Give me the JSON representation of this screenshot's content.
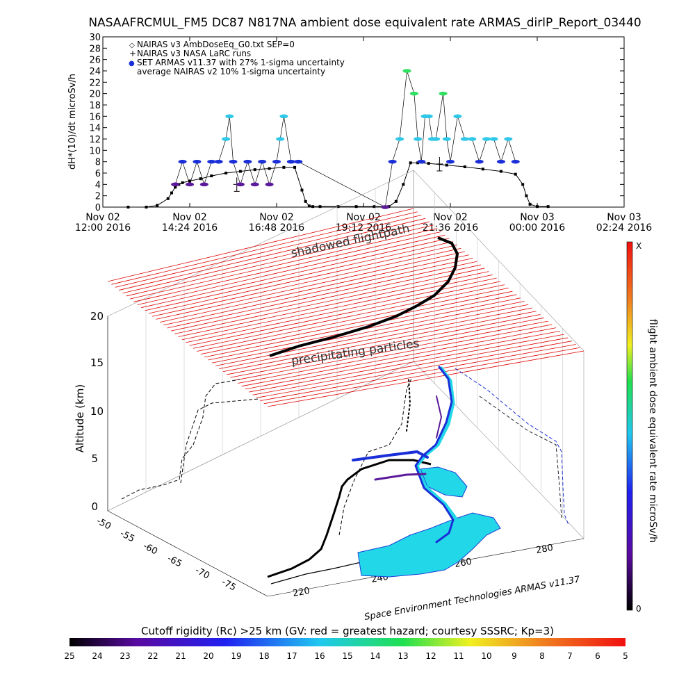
{
  "title": "NASAAFRCMUL_FM5 DC87 N817NA ambient dose equivalent rate ARMAS_dirlP_Report_03440",
  "chart_data": [
    {
      "type": "scatter",
      "ylabel": "dH*(10)/dt microSv/h",
      "ylim": [
        0,
        30
      ],
      "xlim": [
        0,
        14.4
      ],
      "y_ticks": [
        0,
        2,
        4,
        6,
        8,
        10,
        12,
        14,
        16,
        18,
        20,
        22,
        24,
        26,
        28,
        30
      ],
      "x_ticks": [
        {
          "x": 0,
          "line1": "Nov 02",
          "line2": "12:00 2016"
        },
        {
          "x": 2.4,
          "line1": "Nov 02",
          "line2": "14:24 2016"
        },
        {
          "x": 4.8,
          "line1": "Nov 02",
          "line2": "16:48 2016"
        },
        {
          "x": 7.2,
          "line1": "Nov 02",
          "line2": "19:12 2016"
        },
        {
          "x": 9.6,
          "line1": "Nov 02",
          "line2": "21:36 2016"
        },
        {
          "x": 12.0,
          "line1": "Nov 03",
          "line2": "00:00 2016"
        },
        {
          "x": 14.4,
          "line1": "Nov 03",
          "line2": "02:24 2016"
        }
      ],
      "legend": [
        {
          "symbol": "◇",
          "label": "NAIRAS v3 AmbDoseEq_G0.txt SEP=0"
        },
        {
          "symbol": "+",
          "label": "NAIRAS v3 NASA LaRC runs"
        },
        {
          "symbol": "●",
          "label": "SET ARMAS v11.37 with 27% 1-sigma uncertainty"
        },
        {
          "symbol": "",
          "label": "average NAIRAS v2 10% 1-sigma uncertainty"
        }
      ],
      "series": [
        {
          "name": "NAIRAS v3 AmbDoseEq_G0.txt SEP=0",
          "x": [
            0.7,
            1.2,
            1.5,
            1.8,
            1.9,
            2.0,
            2.1,
            2.2,
            2.4,
            2.7,
            3.0,
            3.4,
            3.8,
            4.2,
            4.6,
            5.0,
            5.3,
            5.5,
            5.6,
            5.7,
            5.8,
            6.0,
            6.5,
            7.0,
            7.5,
            7.9,
            8.1,
            8.3,
            8.5,
            8.7,
            9.0,
            9.5,
            10.0,
            10.5,
            11.0,
            11.4,
            11.6,
            11.7,
            11.8,
            12.0,
            12.3
          ],
          "y": [
            0,
            0,
            0.3,
            1.5,
            2.5,
            3.5,
            4.0,
            4.3,
            4.6,
            5.0,
            5.5,
            6.0,
            6.3,
            6.6,
            6.8,
            7.0,
            7.0,
            3.0,
            1.0,
            0.2,
            0.1,
            0.1,
            0.1,
            0.1,
            0.1,
            0.1,
            1.0,
            4.0,
            7.8,
            7.8,
            7.7,
            7.4,
            7.1,
            6.7,
            6.3,
            5.8,
            4.0,
            2.0,
            0.5,
            0.1,
            0.1
          ]
        },
        {
          "name": "NAIRAS v3 NASA LaRC runs",
          "x": [
            3.7,
            9.3
          ],
          "y": [
            4.0,
            7.6
          ]
        },
        {
          "name": "SET ARMAS v11.37 with 27% 1-sigma uncertainty",
          "x": [
            2.0,
            2.2,
            2.4,
            2.6,
            2.8,
            3.0,
            3.2,
            3.4,
            3.5,
            3.6,
            3.8,
            4.0,
            4.2,
            4.4,
            4.6,
            4.8,
            4.9,
            5.0,
            5.2,
            5.4,
            7.8,
            8.0,
            8.2,
            8.4,
            8.6,
            8.7,
            8.8,
            8.9,
            9.0,
            9.1,
            9.2,
            9.4,
            9.5,
            9.6,
            9.8,
            10.0,
            10.2,
            10.4,
            10.6,
            10.8,
            11.0,
            11.2,
            11.4
          ],
          "y": [
            4,
            8,
            4,
            8,
            4,
            8,
            8,
            12,
            16,
            8,
            4,
            8,
            4,
            8,
            4,
            8,
            12,
            16,
            8,
            8,
            0,
            8,
            12,
            24,
            20,
            12,
            8,
            16,
            16,
            12,
            12,
            20,
            12,
            8,
            16,
            12,
            12,
            8,
            12,
            12,
            8,
            12,
            8
          ]
        }
      ]
    },
    {
      "type": "scatter",
      "zlabel": "Altitude (km)",
      "zlim": [
        0,
        22
      ],
      "z_ticks": [
        "0",
        "5",
        "10",
        "15",
        "20"
      ],
      "lat_ticks": [
        "-50",
        "-55",
        "-60",
        "-65",
        "-70",
        "-75"
      ],
      "lon_ticks": [
        "220",
        "240",
        "260",
        "280"
      ],
      "annotations": [
        "shadowed flightpath",
        "precipitating particles"
      ],
      "colorbar": {
        "label": "flight ambient dose equivalent rate microSv/h",
        "top": "X",
        "bottom": "0"
      },
      "credit": "Space Environment Technologies ARMAS v11.37"
    }
  ],
  "bottom_colorbar": {
    "title": "Cutoff rigidity (Rc) >25 km (GV: red = greatest hazard; courtesy SSSRC; Kp=3)",
    "labels": [
      "25",
      "24",
      "23",
      "22",
      "21",
      "20",
      "19",
      "18",
      "17",
      "16",
      "15",
      "14",
      "13",
      "12",
      "11",
      "10",
      "9",
      "8",
      "7",
      "6",
      "5"
    ]
  },
  "colors": {
    "grid_red": "#e00000",
    "armas_blue": "#1a2fd8",
    "armas_purple": "#5a1a9a",
    "armas_cyan": "#30c8e8",
    "armas_green": "#30e060"
  }
}
